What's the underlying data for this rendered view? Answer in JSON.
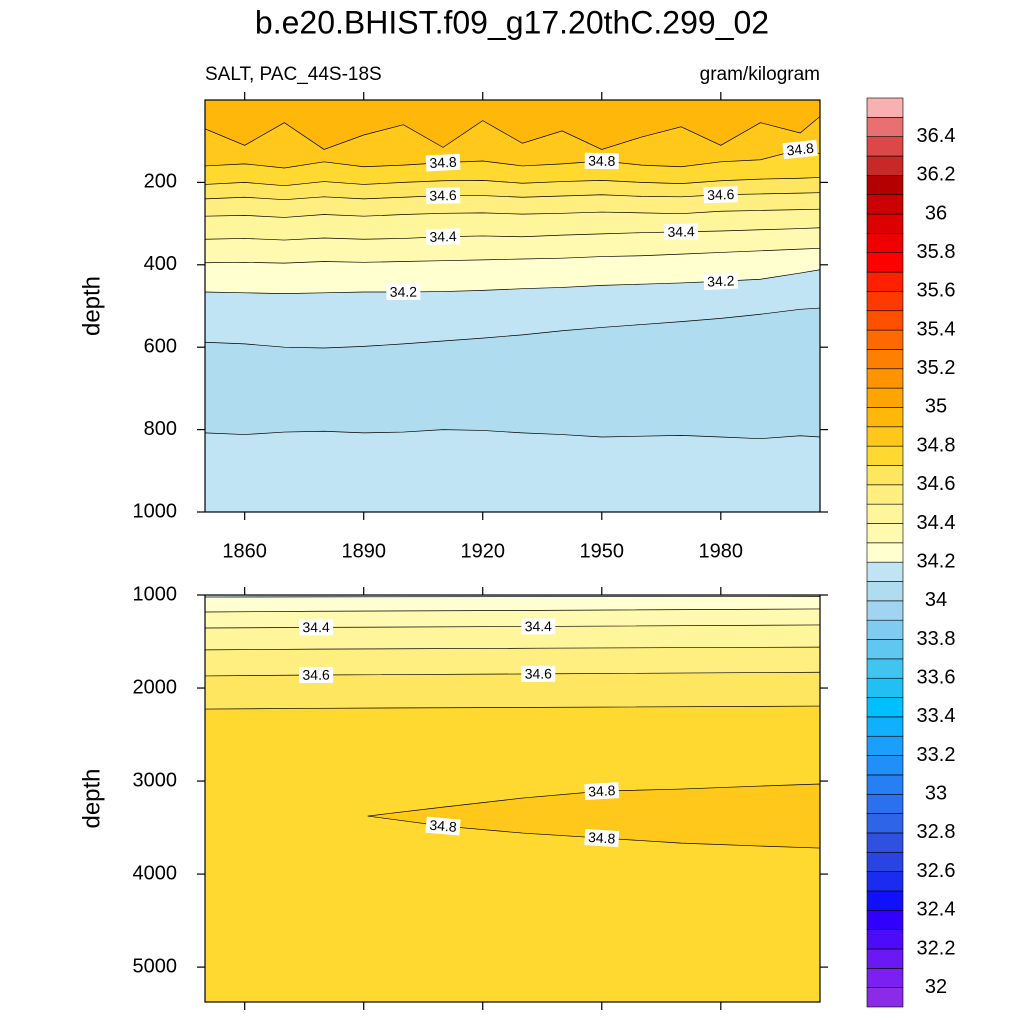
{
  "chart_data": {
    "type": "contour",
    "title": "b.e20.BHIST.f09_g17.20thC.299_02",
    "left_label": "SALT, PAC_44S-18S",
    "right_label": "gram/kilogram",
    "panels": [
      {
        "ylabel": "depth",
        "xlim": [
          1850,
          2005
        ],
        "xticks": [
          1860,
          1890,
          1920,
          1950,
          1980
        ],
        "ylim": [
          0,
          1000
        ],
        "yticks": [
          200,
          400,
          600,
          800,
          1000
        ],
        "x": [
          1850,
          1860,
          1870,
          1880,
          1890,
          1900,
          1910,
          1920,
          1930,
          1940,
          1950,
          1960,
          1970,
          1980,
          1990,
          2000,
          2005
        ],
        "contours": [
          {
            "level": 34.9,
            "depth": [
              70,
              110,
              55,
              120,
              85,
              60,
              115,
              50,
              105,
              75,
              120,
              90,
              65,
              110,
              55,
              80,
              40
            ],
            "labels": []
          },
          {
            "level": 34.8,
            "depth": [
              160,
              155,
              165,
              150,
              162,
              158,
              152,
              148,
              160,
              155,
              148,
              158,
              162,
              150,
              145,
              120,
              130
            ],
            "labels": [
              6,
              10,
              15
            ]
          },
          {
            "level": 34.7,
            "depth": [
              205,
              200,
              208,
              198,
              205,
              200,
              196,
              195,
              202,
              198,
              195,
              200,
              203,
              196,
              192,
              190,
              188
            ],
            "labels": []
          },
          {
            "level": 34.6,
            "depth": [
              240,
              236,
              242,
              235,
              240,
              236,
              232,
              232,
              236,
              233,
              230,
              234,
              235,
              230,
              228,
              226,
              225
            ],
            "labels": [
              6,
              13
            ]
          },
          {
            "level": 34.5,
            "depth": [
              282,
              280,
              285,
              278,
              282,
              278,
              275,
              274,
              277,
              275,
              272,
              274,
              276,
              270,
              268,
              266,
              265
            ],
            "labels": []
          },
          {
            "level": 34.4,
            "depth": [
              338,
              336,
              340,
              335,
              338,
              336,
              332,
              330,
              332,
              328,
              325,
              322,
              320,
              318,
              315,
              312,
              310
            ],
            "labels": [
              6,
              12
            ]
          },
          {
            "level": 34.3,
            "depth": [
              395,
              394,
              396,
              392,
              394,
              392,
              390,
              388,
              386,
              384,
              380,
              378,
              374,
              370,
              366,
              362,
              360
            ],
            "labels": []
          },
          {
            "level": 34.2,
            "depth": [
              466,
              468,
              470,
              468,
              466,
              466,
              465,
              462,
              458,
              455,
              450,
              447,
              444,
              440,
              435,
              420,
              412
            ],
            "labels": [
              5,
              13
            ]
          },
          {
            "level": 34.1,
            "depth": [
              588,
              592,
              600,
              602,
              598,
              592,
              585,
              578,
              570,
              560,
              552,
              545,
              538,
              530,
              520,
              508,
              505
            ],
            "labels": []
          },
          {
            "level": 34.1,
            "depth": [
              808,
              812,
              806,
              804,
              808,
              806,
              800,
              802,
              808,
              812,
              818,
              816,
              814,
              818,
              822,
              815,
              818
            ],
            "labels": []
          }
        ],
        "bands": [
          34.9,
          34.8,
          34.7,
          34.6,
          34.5,
          34.4,
          34.3,
          34.2,
          34.1,
          34.0,
          34.1
        ],
        "closed": []
      },
      {
        "ylabel": "depth",
        "xlim": [
          1850,
          2005
        ],
        "ylim": [
          1000,
          5375
        ],
        "yticks": [
          1000,
          2000,
          3000,
          4000,
          5000
        ],
        "x": [
          1850,
          1878,
          1934,
          2005
        ],
        "contours": [
          {
            "level": 34.2,
            "depth": [
              1022,
              1020,
              1018,
              1015
            ],
            "labels": []
          },
          {
            "level": 34.3,
            "depth": [
              1183,
              1175,
              1165,
              1150
            ],
            "labels": []
          },
          {
            "level": 34.4,
            "depth": [
              1355,
              1348,
              1338,
              1322
            ],
            "labels": [
              1,
              2
            ]
          },
          {
            "level": 34.5,
            "depth": [
              1590,
              1582,
              1572,
              1560
            ],
            "labels": []
          },
          {
            "level": 34.6,
            "depth": [
              1870,
              1860,
              1848,
              1830
            ],
            "labels": [
              1,
              2
            ]
          },
          {
            "level": 34.7,
            "depth": [
              2226,
              2218,
              2208,
              2194
            ],
            "labels": []
          }
        ],
        "bands": [
          34.1,
          34.2,
          34.3,
          34.4,
          34.5,
          34.6,
          34.7
        ],
        "closed": [
          {
            "level": 34.8,
            "band": 34.8,
            "x": [
              1891,
              1910,
              1930,
              1950,
              1970,
              1990,
              2005,
              2005,
              1990,
              1970,
              1950,
              1930,
              1910
            ],
            "depth": [
              3376,
              3280,
              3183,
              3108,
              3086,
              3054,
              3032,
              3720,
              3699,
              3667,
              3613,
              3559,
              3484
            ],
            "labels": [
              3,
              10,
              12
            ]
          }
        ]
      }
    ],
    "colorbar": {
      "levels": [
        32,
        32.1,
        32.2,
        32.3,
        32.4,
        32.5,
        32.6,
        32.7,
        32.8,
        32.9,
        33,
        33.1,
        33.2,
        33.3,
        33.4,
        33.5,
        33.6,
        33.7,
        33.8,
        33.9,
        34,
        34.1,
        34.2,
        34.3,
        34.4,
        34.5,
        34.6,
        34.7,
        34.8,
        34.9,
        35,
        35.1,
        35.2,
        35.3,
        35.4,
        35.5,
        35.6,
        35.7,
        35.8,
        35.9,
        36,
        36.1,
        36.2,
        36.3,
        36.4,
        36.5
      ],
      "colors": [
        "#8b2be8",
        "#7b20f0",
        "#6a18f4",
        "#4d0cf8",
        "#3000fc",
        "#1010ff",
        "#1a2cf0",
        "#2a44e4",
        "#3050e0",
        "#2e64e8",
        "#2a70f0",
        "#2680f4",
        "#2090f8",
        "#1aa0fc",
        "#10b0ff",
        "#00bfff",
        "#20c0f4",
        "#40c4f0",
        "#60c8f0",
        "#80ccf0",
        "#a0d4f0",
        "#b0dcf0",
        "#c0e4f4",
        "#ffffd0",
        "#fffab0",
        "#fff59a",
        "#ffee80",
        "#ffe660",
        "#ffd830",
        "#ffc81a",
        "#ffb80a",
        "#ffa500",
        "#ff9400",
        "#ff8000",
        "#ff6a00",
        "#ff5000",
        "#ff3a00",
        "#ff2000",
        "#ff0000",
        "#ee0000",
        "#dd0000",
        "#cc0000",
        "#b40000",
        "#c82828",
        "#dc4848",
        "#e87070",
        "#f8b0b0"
      ],
      "ticks": [
        32,
        32.2,
        32.4,
        32.6,
        32.8,
        33,
        33.2,
        33.4,
        33.6,
        33.8,
        34,
        34.2,
        34.4,
        34.6,
        34.8,
        35,
        35.2,
        35.4,
        35.6,
        35.8,
        36,
        36.2,
        36.4
      ]
    }
  }
}
